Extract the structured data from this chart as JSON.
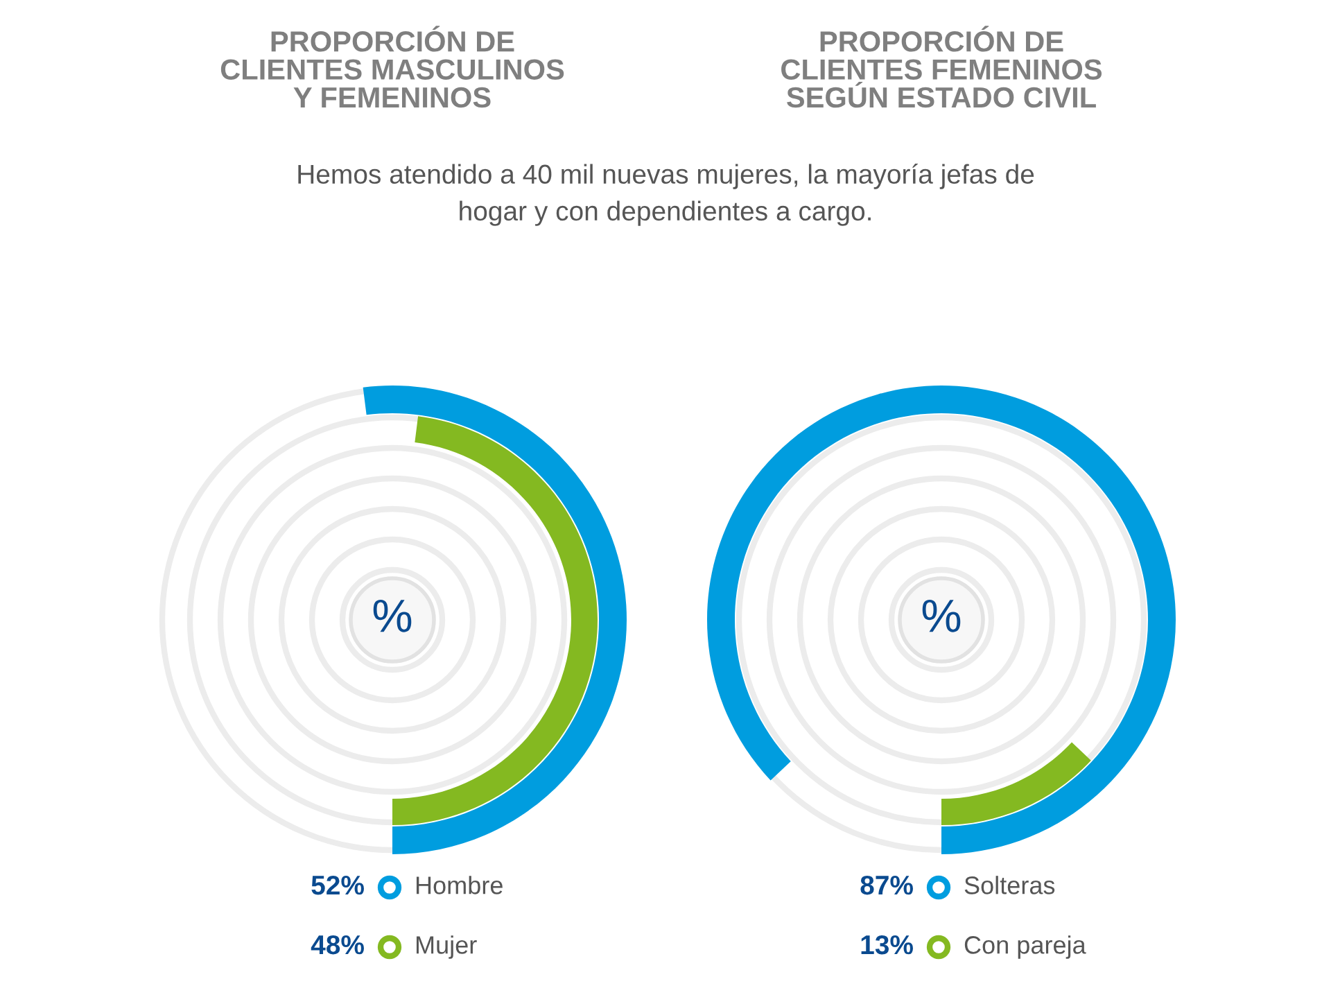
{
  "chart_data": [
    {
      "type": "other",
      "title": "PROPORCIÓN DE\nCLIENTES MASCULINOS\nY FEMENINOS",
      "subtitle": "Hemos atendido a 40 mil nuevas mujeres, la mayoría jefas de\nhogar y con dependientes a cargo.",
      "categories": [
        "Hombre",
        "Mujer"
      ],
      "values": [
        52,
        48
      ],
      "colors": [
        "#009ddf",
        "#84b921"
      ],
      "value_labels": [
        "52%",
        "48%"
      ],
      "annotations": [
        "%"
      ]
    },
    {
      "type": "other",
      "title": "PROPORCIÓN DE\nCLIENTES FEMENINOS\nSEGÚN ESTADO CIVIL",
      "categories": [
        "Solteras",
        "Con pareja"
      ],
      "values": [
        87,
        13
      ],
      "colors": [
        "#009ddf",
        "#84b921"
      ],
      "value_labels": [
        "87%",
        "13%"
      ],
      "annotations": [
        "%"
      ]
    }
  ]
}
